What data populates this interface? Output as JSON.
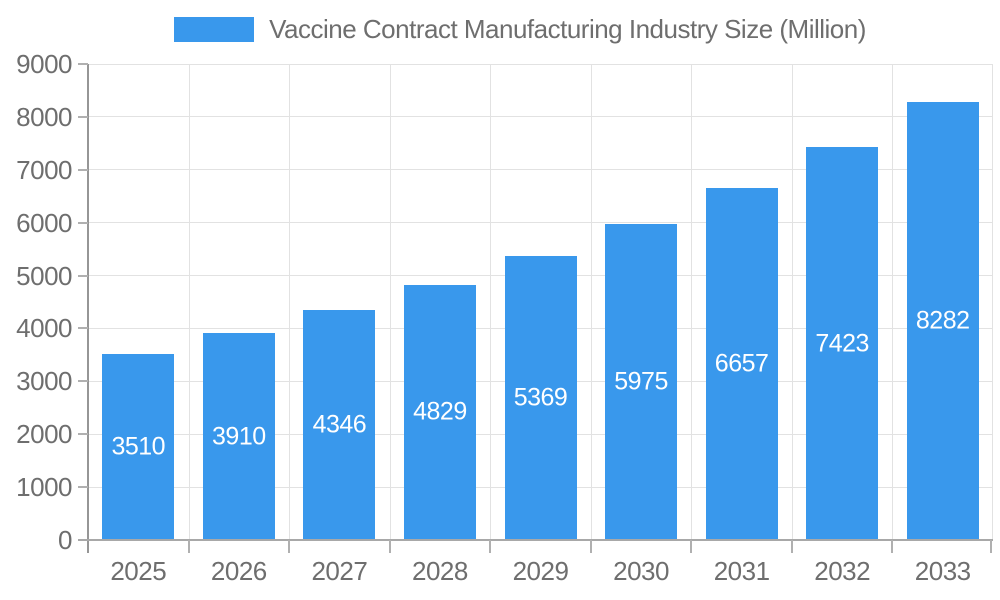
{
  "chart_data": {
    "type": "bar",
    "title": "Vaccine Contract Manufacturing Industry Size (Million)",
    "categories": [
      "2025",
      "2026",
      "2027",
      "2028",
      "2029",
      "2030",
      "2031",
      "2032",
      "2033"
    ],
    "values": [
      3510,
      3910,
      4346,
      4829,
      5369,
      5975,
      6657,
      7423,
      8282
    ],
    "xlabel": "",
    "ylabel": "",
    "ylim": [
      0,
      9000
    ],
    "y_ticks": [
      0,
      1000,
      2000,
      3000,
      4000,
      5000,
      6000,
      7000,
      8000,
      9000
    ],
    "grid": true,
    "legend_position": "top",
    "data_labels": "inside-middle",
    "colors": {
      "bar": "#3998EC",
      "data_label": "#ffffff",
      "axis_text": "#6e6e6e",
      "gridline": "#e2e2e2",
      "y_axis_line": "#969696",
      "x_axis_line": "#a8a8a8",
      "tick": "#b0b0b0",
      "background": "#ffffff"
    }
  }
}
